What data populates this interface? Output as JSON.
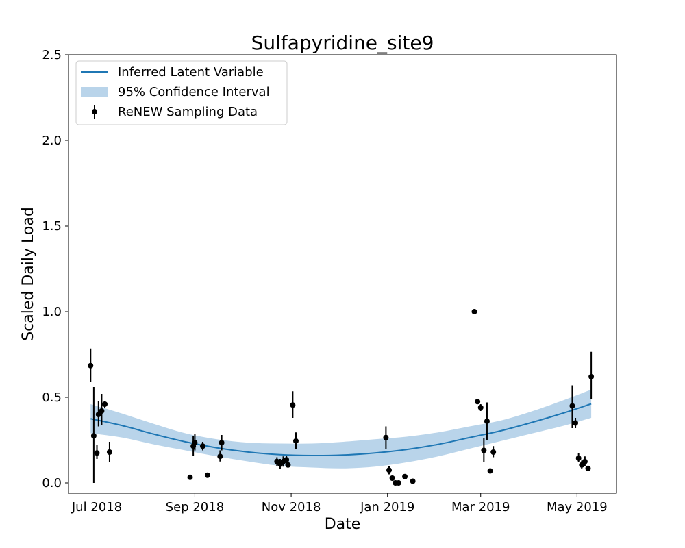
{
  "chart_data": {
    "type": "scatter",
    "title": "Sulfapyridine_site9",
    "xlabel": "Date",
    "ylabel": "Scaled Daily Load",
    "xlim": [
      "2018-06-13",
      "2019-05-26"
    ],
    "ylim": [
      -0.06,
      2.5
    ],
    "x_ticks": [
      {
        "date": "2018-07-01",
        "label": "Jul 2018"
      },
      {
        "date": "2018-09-01",
        "label": "Sep 2018"
      },
      {
        "date": "2018-11-01",
        "label": "Nov 2018"
      },
      {
        "date": "2019-01-01",
        "label": "Jan 2019"
      },
      {
        "date": "2019-03-01",
        "label": "Mar 2019"
      },
      {
        "date": "2019-05-01",
        "label": "May 2019"
      }
    ],
    "y_ticks": [
      {
        "value": 0.0,
        "label": "0.0"
      },
      {
        "value": 0.5,
        "label": "0.5"
      },
      {
        "value": 1.0,
        "label": "1.0"
      },
      {
        "value": 1.5,
        "label": "1.5"
      },
      {
        "value": 2.0,
        "label": "2.0"
      },
      {
        "value": 2.5,
        "label": "2.5"
      }
    ],
    "grid": false,
    "legend": {
      "position": "top-left",
      "entries": [
        {
          "label": "Inferred Latent Variable",
          "kind": "line"
        },
        {
          "label": "95% Confidence Interval",
          "kind": "band"
        },
        {
          "label": "ReNEW Sampling Data",
          "kind": "errorbar-point"
        }
      ]
    },
    "colors": {
      "line": "#1f77b4",
      "band": "#b9d4ea",
      "points": "#000000"
    },
    "latent": [
      {
        "x": "2018-06-27",
        "y": 0.375,
        "lo": 0.29,
        "hi": 0.46
      },
      {
        "x": "2018-07-17",
        "y": 0.335,
        "lo": 0.265,
        "hi": 0.405
      },
      {
        "x": "2018-08-06",
        "y": 0.285,
        "lo": 0.225,
        "hi": 0.345
      },
      {
        "x": "2018-08-26",
        "y": 0.24,
        "lo": 0.19,
        "hi": 0.29
      },
      {
        "x": "2018-09-15",
        "y": 0.205,
        "lo": 0.155,
        "hi": 0.255
      },
      {
        "x": "2018-10-05",
        "y": 0.18,
        "lo": 0.125,
        "hi": 0.235
      },
      {
        "x": "2018-10-25",
        "y": 0.165,
        "lo": 0.1,
        "hi": 0.23
      },
      {
        "x": "2018-11-14",
        "y": 0.16,
        "lo": 0.09,
        "hi": 0.23
      },
      {
        "x": "2018-12-04",
        "y": 0.163,
        "lo": 0.085,
        "hi": 0.24
      },
      {
        "x": "2018-12-24",
        "y": 0.175,
        "lo": 0.095,
        "hi": 0.255
      },
      {
        "x": "2019-01-13",
        "y": 0.195,
        "lo": 0.12,
        "hi": 0.27
      },
      {
        "x": "2019-02-02",
        "y": 0.225,
        "lo": 0.155,
        "hi": 0.295
      },
      {
        "x": "2019-02-22",
        "y": 0.265,
        "lo": 0.2,
        "hi": 0.33
      },
      {
        "x": "2019-03-14",
        "y": 0.305,
        "lo": 0.245,
        "hi": 0.365
      },
      {
        "x": "2019-04-03",
        "y": 0.355,
        "lo": 0.29,
        "hi": 0.42
      },
      {
        "x": "2019-04-23",
        "y": 0.41,
        "lo": 0.335,
        "hi": 0.485
      },
      {
        "x": "2019-05-10",
        "y": 0.462,
        "lo": 0.38,
        "hi": 0.545
      }
    ],
    "points": [
      {
        "x": "2018-06-27",
        "y": 0.685,
        "lo": 0.59,
        "hi": 0.785
      },
      {
        "x": "2018-06-29",
        "y": 0.275,
        "lo": 0.0,
        "hi": 0.56
      },
      {
        "x": "2018-07-01",
        "y": 0.175,
        "lo": 0.14,
        "hi": 0.22
      },
      {
        "x": "2018-07-02",
        "y": 0.4,
        "lo": 0.33,
        "hi": 0.48
      },
      {
        "x": "2018-07-04",
        "y": 0.42,
        "lo": 0.34,
        "hi": 0.52
      },
      {
        "x": "2018-07-06",
        "y": 0.46,
        "lo": 0.44,
        "hi": 0.48
      },
      {
        "x": "2018-07-09",
        "y": 0.18,
        "lo": 0.12,
        "hi": 0.24
      },
      {
        "x": "2018-08-29",
        "y": 0.033,
        "lo": 0.03,
        "hi": 0.036
      },
      {
        "x": "2018-08-31",
        "y": 0.215,
        "lo": 0.16,
        "hi": 0.275
      },
      {
        "x": "2018-09-01",
        "y": 0.235,
        "lo": 0.19,
        "hi": 0.285
      },
      {
        "x": "2018-09-06",
        "y": 0.215,
        "lo": 0.19,
        "hi": 0.24
      },
      {
        "x": "2018-09-09",
        "y": 0.045,
        "lo": 0.042,
        "hi": 0.048
      },
      {
        "x": "2018-09-17",
        "y": 0.155,
        "lo": 0.125,
        "hi": 0.19
      },
      {
        "x": "2018-09-18",
        "y": 0.235,
        "lo": 0.19,
        "hi": 0.28
      },
      {
        "x": "2018-10-23",
        "y": 0.125,
        "lo": 0.1,
        "hi": 0.15
      },
      {
        "x": "2018-10-25",
        "y": 0.11,
        "lo": 0.08,
        "hi": 0.14
      },
      {
        "x": "2018-10-27",
        "y": 0.125,
        "lo": 0.095,
        "hi": 0.155
      },
      {
        "x": "2018-10-29",
        "y": 0.135,
        "lo": 0.115,
        "hi": 0.16
      },
      {
        "x": "2018-10-30",
        "y": 0.105,
        "lo": 0.09,
        "hi": 0.12
      },
      {
        "x": "2018-11-02",
        "y": 0.455,
        "lo": 0.38,
        "hi": 0.535
      },
      {
        "x": "2018-11-04",
        "y": 0.245,
        "lo": 0.2,
        "hi": 0.295
      },
      {
        "x": "2018-12-31",
        "y": 0.265,
        "lo": 0.2,
        "hi": 0.33
      },
      {
        "x": "2019-01-02",
        "y": 0.075,
        "lo": 0.05,
        "hi": 0.1
      },
      {
        "x": "2019-01-04",
        "y": 0.028,
        "lo": 0.02,
        "hi": 0.036
      },
      {
        "x": "2019-01-06",
        "y": 0.0,
        "lo": -0.005,
        "hi": 0.005
      },
      {
        "x": "2019-01-08",
        "y": 0.0,
        "lo": -0.005,
        "hi": 0.005
      },
      {
        "x": "2019-01-12",
        "y": 0.037,
        "lo": 0.033,
        "hi": 0.041
      },
      {
        "x": "2019-01-17",
        "y": 0.01,
        "lo": 0.0,
        "hi": 0.02
      },
      {
        "x": "2019-02-25",
        "y": 1.0,
        "lo": 0.995,
        "hi": 1.005
      },
      {
        "x": "2019-02-27",
        "y": 0.475,
        "lo": 0.46,
        "hi": 0.49
      },
      {
        "x": "2019-03-01",
        "y": 0.44,
        "lo": 0.42,
        "hi": 0.46
      },
      {
        "x": "2019-03-03",
        "y": 0.19,
        "lo": 0.12,
        "hi": 0.26
      },
      {
        "x": "2019-03-05",
        "y": 0.36,
        "lo": 0.25,
        "hi": 0.47
      },
      {
        "x": "2019-03-07",
        "y": 0.07,
        "lo": 0.065,
        "hi": 0.075
      },
      {
        "x": "2019-03-09",
        "y": 0.18,
        "lo": 0.15,
        "hi": 0.215
      },
      {
        "x": "2019-04-28",
        "y": 0.45,
        "lo": 0.32,
        "hi": 0.57
      },
      {
        "x": "2019-04-30",
        "y": 0.35,
        "lo": 0.32,
        "hi": 0.38
      },
      {
        "x": "2019-05-02",
        "y": 0.145,
        "lo": 0.12,
        "hi": 0.175
      },
      {
        "x": "2019-05-04",
        "y": 0.105,
        "lo": 0.08,
        "hi": 0.13
      },
      {
        "x": "2019-05-06",
        "y": 0.125,
        "lo": 0.1,
        "hi": 0.155
      },
      {
        "x": "2019-05-08",
        "y": 0.085,
        "lo": 0.07,
        "hi": 0.1
      },
      {
        "x": "2019-05-10",
        "y": 0.62,
        "lo": 0.49,
        "hi": 0.765
      }
    ]
  }
}
